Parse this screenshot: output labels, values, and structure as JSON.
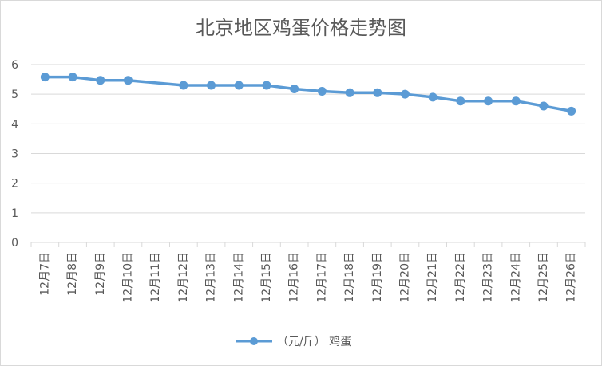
{
  "chart_data": {
    "type": "line",
    "title": "北京地区鸡蛋价格走势图",
    "xlabel": "",
    "ylabel": "",
    "ylim": [
      0,
      6
    ],
    "y_ticks": [
      0,
      1,
      2,
      3,
      4,
      5,
      6
    ],
    "grid": true,
    "legend_position": "bottom",
    "categories": [
      "12月7日",
      "12月8日",
      "12月9日",
      "12月10日",
      "12月11日",
      "12月12日",
      "12月13日",
      "12月14日",
      "12月15日",
      "12月16日",
      "12月17日",
      "12月18日",
      "12月19日",
      "12月20日",
      "12月21日",
      "12月22日",
      "12月23日",
      "12月24日",
      "12月25日",
      "12月26日"
    ],
    "series": [
      {
        "name": "（元/斤） 鸡蛋",
        "color": "#5b9bd5",
        "values": [
          5.58,
          5.58,
          5.47,
          5.47,
          null,
          5.3,
          5.3,
          5.3,
          5.3,
          5.18,
          5.1,
          5.05,
          5.05,
          5.0,
          4.9,
          4.77,
          4.77,
          4.77,
          4.6,
          4.43
        ]
      }
    ]
  }
}
